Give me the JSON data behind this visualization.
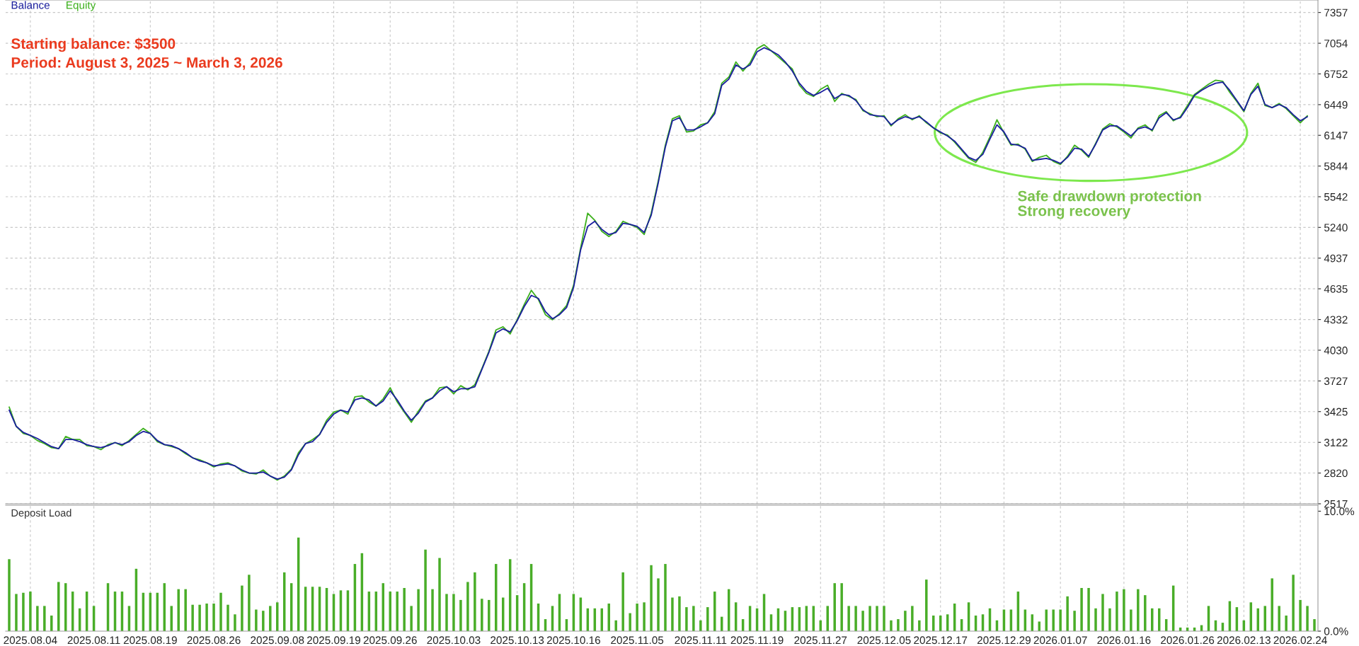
{
  "chart_data": [
    {
      "type": "line",
      "legend": "top left",
      "tick_labels": "y",
      "grid": true,
      "annotations": [
        "Starting balance: $3500",
        "Period: August 3, 2025 ~ March 3, 2026",
        "Safe drawdown protection\nStrong recovery"
      ],
      "ylim": [
        2517,
        7480
      ],
      "yticks": [
        2517,
        2820,
        3122,
        3425,
        3727,
        4030,
        4332,
        4635,
        4937,
        5240,
        5542,
        5844,
        6147,
        6449,
        6752,
        7054,
        7357
      ],
      "categories": [
        null,
        null,
        null,
        "2025.08.04",
        null,
        null,
        null,
        null,
        null,
        null,
        null,
        null,
        "2025.08.11",
        null,
        null,
        null,
        null,
        null,
        null,
        null,
        "2025.08.19",
        null,
        null,
        null,
        null,
        null,
        null,
        null,
        null,
        "2025.08.26",
        null,
        null,
        null,
        null,
        null,
        null,
        null,
        null,
        "2025.09.08",
        null,
        null,
        null,
        null,
        null,
        null,
        null,
        "2025.09.19",
        null,
        null,
        null,
        null,
        null,
        null,
        null,
        "2025.09.26",
        null,
        null,
        null,
        null,
        null,
        null,
        null,
        null,
        "2025.10.03",
        null,
        null,
        null,
        null,
        null,
        null,
        null,
        null,
        "2025.10.13",
        null,
        null,
        null,
        null,
        null,
        null,
        null,
        "2025.10.16",
        null,
        null,
        null,
        null,
        null,
        null,
        null,
        null,
        "2025.11.05",
        null,
        null,
        null,
        null,
        null,
        null,
        null,
        null,
        "2025.11.11",
        null,
        null,
        null,
        null,
        null,
        null,
        null,
        "2025.11.19",
        null,
        null,
        null,
        null,
        null,
        null,
        null,
        null,
        "2025.11.27",
        null,
        null,
        null,
        null,
        null,
        null,
        null,
        null,
        "2025.12.05",
        null,
        null,
        null,
        null,
        null,
        null,
        null,
        "2025.12.17",
        null,
        null,
        null,
        null,
        null,
        null,
        null,
        null,
        "2025.12.29",
        null,
        null,
        null,
        null,
        null,
        null,
        null,
        "2026.01.07",
        null,
        null,
        null,
        null,
        null,
        null,
        null,
        null,
        "2026.01.16",
        null,
        null,
        null,
        null,
        null,
        null,
        null,
        null,
        "2026.01.26",
        null,
        null,
        null,
        null,
        null,
        null,
        null,
        "2026.02.13",
        null,
        null,
        null,
        null,
        null,
        null,
        null,
        "2026.02.24",
        null,
        null
      ],
      "series": [
        {
          "name": "Equity",
          "color": "#3cb01c",
          "values": [
            3470,
            3280,
            3210,
            3190,
            3140,
            3110,
            3070,
            3060,
            3180,
            3150,
            3150,
            3090,
            3080,
            3050,
            3100,
            3120,
            3090,
            3140,
            3200,
            3260,
            3210,
            3130,
            3100,
            3080,
            3060,
            3010,
            2970,
            2950,
            2920,
            2880,
            2910,
            2920,
            2890,
            2840,
            2820,
            2810,
            2850,
            2790,
            2750,
            2790,
            2860,
            3020,
            3110,
            3150,
            3200,
            3340,
            3420,
            3440,
            3400,
            3570,
            3580,
            3520,
            3480,
            3550,
            3660,
            3520,
            3420,
            3320,
            3430,
            3530,
            3560,
            3660,
            3670,
            3600,
            3680,
            3640,
            3690,
            3850,
            4020,
            4230,
            4260,
            4190,
            4330,
            4480,
            4620,
            4530,
            4380,
            4330,
            4390,
            4470,
            4670,
            5040,
            5380,
            5310,
            5200,
            5150,
            5200,
            5300,
            5270,
            5240,
            5170,
            5380,
            5700,
            6050,
            6310,
            6340,
            6180,
            6190,
            6250,
            6270,
            6380,
            6660,
            6720,
            6870,
            6780,
            6860,
            7000,
            7040,
            6980,
            6920,
            6860,
            6800,
            6640,
            6560,
            6530,
            6600,
            6640,
            6480,
            6560,
            6530,
            6500,
            6390,
            6360,
            6330,
            6340,
            6240,
            6310,
            6350,
            6300,
            6340,
            6270,
            6220,
            6170,
            6150,
            6080,
            6000,
            5920,
            5880,
            5980,
            6130,
            6300,
            6170,
            6050,
            6060,
            6010,
            5890,
            5930,
            5950,
            5890,
            5860,
            5940,
            6050,
            6000,
            5930,
            6070,
            6210,
            6260,
            6230,
            6180,
            6120,
            6220,
            6250,
            6190,
            6340,
            6380,
            6290,
            6330,
            6440,
            6550,
            6600,
            6650,
            6690,
            6680,
            6570,
            6480,
            6380,
            6560,
            6660,
            6440,
            6420,
            6460,
            6410,
            6340,
            6270,
            6340,
            null
          ]
        },
        {
          "name": "Balance",
          "color": "#1b1f9e",
          "values": [
            3440,
            3280,
            3220,
            3190,
            3160,
            3120,
            3080,
            3060,
            3150,
            3150,
            3130,
            3100,
            3080,
            3070,
            3090,
            3120,
            3100,
            3130,
            3190,
            3230,
            3210,
            3140,
            3100,
            3090,
            3060,
            3020,
            2970,
            2940,
            2920,
            2890,
            2900,
            2910,
            2890,
            2850,
            2820,
            2820,
            2830,
            2790,
            2760,
            2780,
            2850,
            3000,
            3110,
            3130,
            3200,
            3320,
            3400,
            3440,
            3420,
            3540,
            3560,
            3540,
            3480,
            3530,
            3630,
            3540,
            3430,
            3340,
            3410,
            3520,
            3560,
            3630,
            3670,
            3620,
            3650,
            3650,
            3670,
            3840,
            4010,
            4200,
            4240,
            4210,
            4320,
            4460,
            4570,
            4540,
            4410,
            4340,
            4380,
            4450,
            4650,
            5020,
            5250,
            5300,
            5220,
            5170,
            5190,
            5280,
            5270,
            5250,
            5190,
            5360,
            5680,
            6030,
            6290,
            6320,
            6200,
            6200,
            6230,
            6270,
            6360,
            6640,
            6700,
            6840,
            6800,
            6840,
            6970,
            7010,
            6980,
            6940,
            6870,
            6780,
            6660,
            6580,
            6540,
            6570,
            6610,
            6510,
            6550,
            6540,
            6490,
            6400,
            6350,
            6340,
            6330,
            6250,
            6300,
            6330,
            6310,
            6330,
            6280,
            6220,
            6180,
            6140,
            6090,
            6010,
            5930,
            5900,
            5960,
            6110,
            6250,
            6180,
            6060,
            6050,
            6020,
            5900,
            5910,
            5920,
            5900,
            5870,
            5930,
            6020,
            6010,
            5940,
            6060,
            6200,
            6240,
            6240,
            6190,
            6140,
            6210,
            6230,
            6200,
            6320,
            6370,
            6300,
            6320,
            6420,
            6540,
            6590,
            6630,
            6660,
            6670,
            6590,
            6490,
            6390,
            6550,
            6630,
            6450,
            6420,
            6450,
            6420,
            6350,
            6290,
            6330,
            null
          ]
        }
      ]
    },
    {
      "type": "bar",
      "title": "Deposit Load",
      "grid": "x",
      "color": "#49ad28",
      "ylim": [
        0,
        10.5
      ],
      "yticks": [
        {
          "value": 0,
          "label": "0.0%"
        },
        {
          "value": 10,
          "label": "10.0%"
        }
      ],
      "categories": [
        null,
        null,
        null,
        "2025.08.04",
        null,
        null,
        null,
        null,
        null,
        null,
        null,
        null,
        "2025.08.11",
        null,
        null,
        null,
        null,
        null,
        null,
        null,
        "2025.08.19",
        null,
        null,
        null,
        null,
        null,
        null,
        null,
        null,
        "2025.08.26",
        null,
        null,
        null,
        null,
        null,
        null,
        null,
        null,
        "2025.09.08",
        null,
        null,
        null,
        null,
        null,
        null,
        null,
        "2025.09.19",
        null,
        null,
        null,
        null,
        null,
        null,
        null,
        "2025.09.26",
        null,
        null,
        null,
        null,
        null,
        null,
        null,
        null,
        "2025.10.03",
        null,
        null,
        null,
        null,
        null,
        null,
        null,
        null,
        "2025.10.13",
        null,
        null,
        null,
        null,
        null,
        null,
        null,
        "2025.10.16",
        null,
        null,
        null,
        null,
        null,
        null,
        null,
        null,
        "2025.11.05",
        null,
        null,
        null,
        null,
        null,
        null,
        null,
        null,
        "2025.11.11",
        null,
        null,
        null,
        null,
        null,
        null,
        null,
        "2025.11.19",
        null,
        null,
        null,
        null,
        null,
        null,
        null,
        null,
        "2025.11.27",
        null,
        null,
        null,
        null,
        null,
        null,
        null,
        null,
        "2025.12.05",
        null,
        null,
        null,
        null,
        null,
        null,
        null,
        "2025.12.17",
        null,
        null,
        null,
        null,
        null,
        null,
        null,
        null,
        "2025.12.29",
        null,
        null,
        null,
        null,
        null,
        null,
        null,
        "2026.01.07",
        null,
        null,
        null,
        null,
        null,
        null,
        null,
        null,
        "2026.01.16",
        null,
        null,
        null,
        null,
        null,
        null,
        null,
        null,
        "2026.01.26",
        null,
        null,
        null,
        null,
        null,
        null,
        null,
        "2026.02.13",
        null,
        null,
        null,
        null,
        null,
        null,
        null,
        "2026.02.24",
        null,
        null
      ],
      "values": [
        6.0,
        3.1,
        3.2,
        3.3,
        2.1,
        2.1,
        1.3,
        4.1,
        4.0,
        3.3,
        1.9,
        3.3,
        2.1,
        null,
        4.0,
        3.3,
        3.3,
        2.1,
        5.2,
        3.2,
        3.2,
        3.2,
        4.0,
        2.1,
        3.5,
        3.5,
        2.2,
        2.2,
        2.3,
        2.3,
        3.2,
        2.2,
        1.4,
        3.8,
        4.7,
        1.8,
        1.7,
        2.1,
        2.4,
        4.9,
        4.0,
        7.8,
        3.7,
        3.7,
        3.7,
        3.6,
        3.1,
        3.4,
        3.4,
        5.6,
        6.5,
        3.3,
        3.3,
        4.0,
        3.3,
        3.3,
        3.6,
        2.1,
        3.5,
        6.8,
        3.5,
        6.1,
        3.1,
        3.1,
        2.6,
        4.1,
        4.9,
        2.7,
        2.6,
        5.6,
        2.8,
        6.0,
        3.0,
        4.0,
        5.6,
        2.3,
        1.0,
        2.1,
        3.1,
        1.0,
        3.1,
        2.8,
        1.9,
        1.9,
        1.9,
        2.3,
        0.9,
        4.9,
        1.5,
        2.3,
        2.4,
        5.5,
        4.4,
        5.6,
        2.8,
        2.9,
        2.0,
        2.1,
        0.9,
        2.0,
        3.3,
        1.2,
        3.5,
        2.4,
        1.0,
        2.1,
        1.9,
        3.1,
        1.4,
        1.9,
        1.7,
        2.0,
        2.0,
        2.1,
        2.1,
        0.9,
        2.1,
        4.0,
        4.0,
        2.1,
        2.1,
        1.7,
        2.1,
        2.1,
        2.1,
        0.9,
        1.0,
        1.7,
        2.1,
        0.9,
        4.3,
        1.3,
        1.3,
        1.4,
        2.3,
        1.0,
        2.4,
        1.3,
        1.4,
        1.9,
        0.9,
        1.8,
        1.8,
        3.3,
        1.8,
        1.4,
        0.8,
        1.8,
        1.8,
        1.8,
        2.9,
        1.7,
        3.6,
        3.6,
        1.9,
        3.1,
        1.9,
        3.3,
        3.5,
        1.8,
        3.5,
        3.0,
        1.9,
        1.9,
        1.0,
        3.8,
        0.3,
        0.3,
        0.3,
        0.5,
        2.1,
        0.9,
        0.7,
        2.5,
        2.0,
        0.9,
        2.4,
        1.9,
        2.1,
        4.4,
        2.1,
        1.3,
        4.7,
        2.6,
        2.1,
        1.0
      ]
    }
  ]
}
